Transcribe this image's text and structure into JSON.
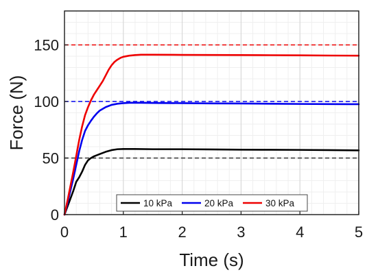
{
  "chart_data": {
    "type": "line",
    "title": "",
    "xlabel": "Time (s)",
    "ylabel": "Force (N)",
    "xlim": [
      0,
      5
    ],
    "ylim": [
      0,
      180
    ],
    "xticks": [
      0,
      1,
      2,
      3,
      4,
      5
    ],
    "xtick_labels": [
      "0",
      "1",
      "2",
      "3",
      "4",
      "5"
    ],
    "yticks": [
      0,
      50,
      100,
      150
    ],
    "ytick_labels": [
      "0",
      "50",
      "100",
      "150"
    ],
    "grid": true,
    "minor_grid": true,
    "legend_position": "bottom-center",
    "series": [
      {
        "name": "10 kPa",
        "color": "#000000",
        "x": [
          0,
          0.05,
          0.1,
          0.15,
          0.2,
          0.25,
          0.3,
          0.35,
          0.4,
          0.45,
          0.5,
          0.6,
          0.7,
          0.8,
          0.9,
          1.0,
          1.2,
          1.5,
          2,
          2.5,
          3,
          3.5,
          4,
          4.5,
          5
        ],
        "y": [
          0,
          7,
          14,
          21,
          29,
          33,
          38,
          44,
          48,
          50,
          51.5,
          53.5,
          55.5,
          57,
          57.8,
          58,
          58,
          57.8,
          57.8,
          57.6,
          57.4,
          57.3,
          57.2,
          57,
          56.8
        ]
      },
      {
        "name": "20 kPa",
        "color": "#0000ee",
        "x": [
          0,
          0.05,
          0.1,
          0.15,
          0.2,
          0.25,
          0.3,
          0.35,
          0.4,
          0.45,
          0.5,
          0.55,
          0.6,
          0.7,
          0.8,
          0.9,
          1.0,
          1.1,
          1.3,
          1.5,
          2,
          2.5,
          3,
          3.5,
          4,
          4.5,
          5
        ],
        "y": [
          0,
          10,
          21,
          32,
          44,
          56,
          66,
          74,
          79,
          83,
          86.5,
          89.5,
          92,
          95,
          97,
          98,
          98.5,
          98.8,
          98.8,
          98.7,
          98.5,
          98.3,
          98.2,
          98,
          97.8,
          97.7,
          97.6
        ]
      },
      {
        "name": "30 kPa",
        "color": "#ee0000",
        "x": [
          0,
          0.05,
          0.1,
          0.15,
          0.2,
          0.25,
          0.3,
          0.35,
          0.4,
          0.45,
          0.5,
          0.55,
          0.6,
          0.65,
          0.7,
          0.75,
          0.8,
          0.85,
          0.9,
          0.95,
          1.0,
          1.1,
          1.2,
          1.3,
          1.5,
          2,
          2.5,
          3,
          3.5,
          4,
          4.5,
          5
        ],
        "y": [
          0,
          12,
          25,
          38,
          52,
          66,
          78,
          88,
          95,
          101,
          106,
          110,
          114,
          118,
          123,
          128,
          132,
          135,
          137,
          138.5,
          139.5,
          140.5,
          141,
          141.3,
          141.3,
          141.2,
          141.1,
          141,
          140.9,
          140.8,
          140.6,
          140.5
        ]
      }
    ],
    "reference_lines": [
      {
        "y": 50,
        "color": "#333333",
        "style": "dashed"
      },
      {
        "y": 100,
        "color": "#0000ee",
        "style": "dashed"
      },
      {
        "y": 150,
        "color": "#ee0000",
        "style": "dashed"
      }
    ]
  }
}
